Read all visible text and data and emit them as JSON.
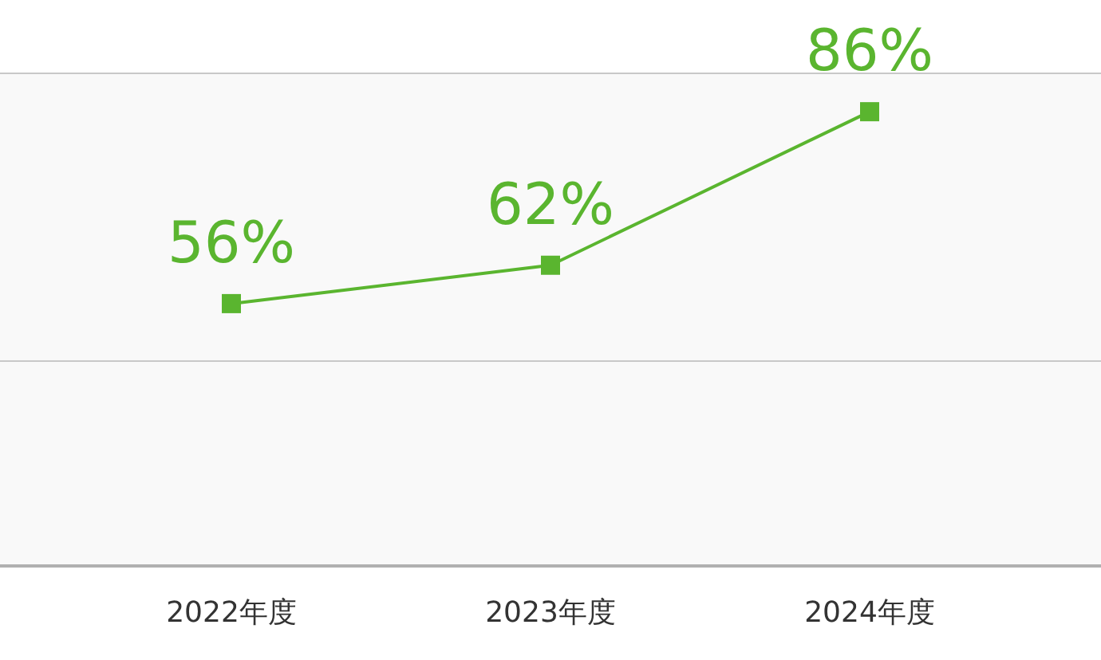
{
  "chart_data": {
    "type": "line",
    "categories": [
      "2022年度",
      "2023年度",
      "2024年度"
    ],
    "series": [
      {
        "color": "#5ab52f",
        "values": [
          56,
          62,
          86
        ],
        "value_labels": [
          "56%",
          "62%",
          "86%"
        ]
      }
    ],
    "marker": "square",
    "line_style": "solid",
    "tick_labels": "x"
  }
}
